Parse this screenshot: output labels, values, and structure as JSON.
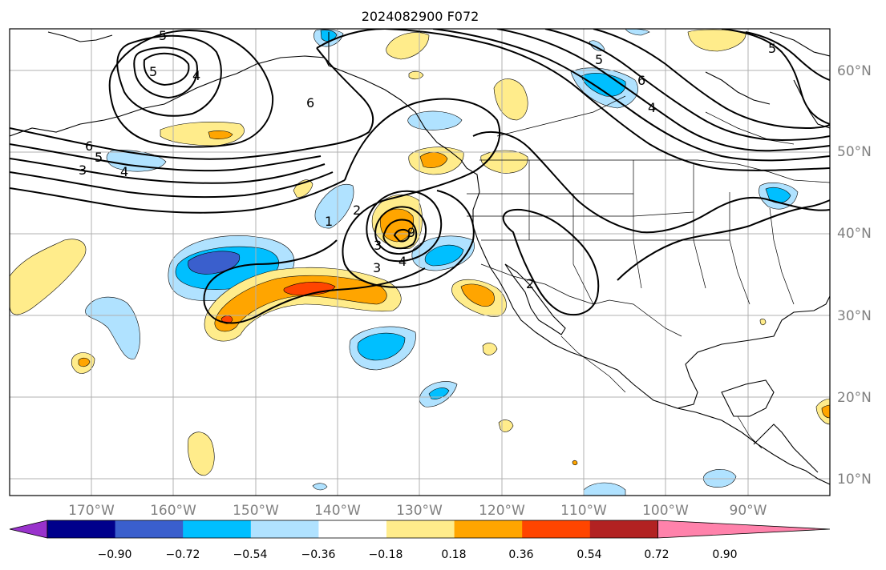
{
  "title": "2024082900 F072",
  "lat_labels": [
    "60°N",
    "50°N",
    "40°N",
    "30°N",
    "20°N",
    "10°N"
  ],
  "lon_labels": [
    "170°W",
    "160°W",
    "150°W",
    "140°W",
    "130°W",
    "120°W",
    "110°W",
    "100°W",
    "90°W"
  ],
  "colorbar": {
    "tick_labels": [
      "−0.90",
      "−0.72",
      "−0.54",
      "−0.36",
      "−0.18",
      "0.18",
      "0.36",
      "0.54",
      "0.72",
      "0.90"
    ],
    "colors": [
      "#9932cc",
      "#00008b",
      "#3a5fcd",
      "#00bfff",
      "#b0e2ff",
      "#ffffff",
      "#ffec8b",
      "#ffa500",
      "#ff4500",
      "#b22222",
      "#ff82ab"
    ]
  },
  "shading_colors": {
    "light_blue": "#b0e2ff",
    "blue": "#00bfff",
    "royal_blue": "#3a5fcd",
    "yellow": "#ffec8b",
    "orange": "#ffa500",
    "red": "#ff4500"
  },
  "contour_labels": [
    "5",
    "5",
    "4",
    "6",
    "6",
    "5",
    "4",
    "3",
    "1",
    "2",
    "3",
    "3",
    "4",
    "9",
    "2",
    "5",
    "6",
    "4",
    "5"
  ]
}
